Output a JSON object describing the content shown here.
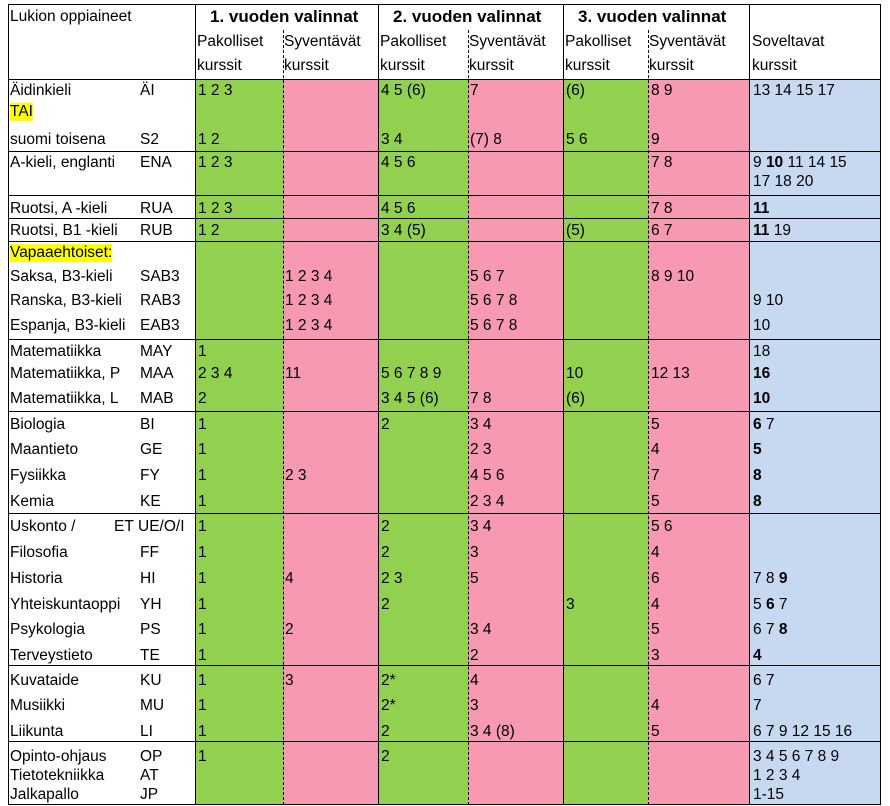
{
  "header": {
    "subjects": "Lukion oppiaineet",
    "year1": "1. vuoden valinnat",
    "year2": "2. vuoden valinnat",
    "year3": "3. vuoden valinnat",
    "pakolliset": "Pakolliset",
    "syventavat": "Syventävät",
    "soveltavat": "Soveltavat",
    "kurssit": "kurssit"
  },
  "rows": [
    {
      "name": "Äidinkieli",
      "code": "ÄI",
      "y1p": "1 2 3",
      "y2p": "4 5 (6)",
      "y2s": "7",
      "y3p": "(6)",
      "y3s": "8 9",
      "sov": "13 14 15 17"
    },
    {
      "name": "TAI",
      "highlight": true
    },
    {
      "name": "suomi toisena",
      "code": "S2",
      "y1p": "1 2",
      "y2p": "3 4",
      "y2s": "(7) 8",
      "y3p": "5 6",
      "y3s": "9"
    },
    {
      "name": "A-kieli, englanti",
      "code": "ENA",
      "y1p": "1 2 3",
      "y2p": "4 5 6",
      "y3s": "7 8",
      "sov_a": "9 ",
      "sov_b": "10",
      "sov_c": " 11 14 15",
      "sov2": "17 18 20"
    },
    {
      "name": "Ruotsi, A -kieli",
      "code": "RUA",
      "y1p": "1 2 3",
      "y2p": "4 5 6",
      "y3s": "7 8",
      "sov_b": "11"
    },
    {
      "name": "Ruotsi, B1 -kieli",
      "code": "RUB",
      "y1p": "1 2",
      "y2p": "3 4 (5)",
      "y3p": "(5)",
      "y3s": "6 7",
      "sov_b": "11",
      "sov_c": " 19"
    },
    {
      "name": "Vapaaehtoiset:",
      "highlight": true
    },
    {
      "name": "Saksa, B3-kieli",
      "code": "SAB3",
      "y1s": "1 2 3 4",
      "y2s": "5 6 7",
      "y3s": "8  9 10"
    },
    {
      "name": "Ranska, B3-kieli",
      "code": "RAB3",
      "y1s": "1 2 3 4",
      "y2s": "5 6 7 8",
      "sov": "9 10"
    },
    {
      "name": "Espanja, B3-kieli",
      "code": "EAB3",
      "y1s": "1 2 3 4",
      "y2s": "5 6 7 8",
      "sov": "10"
    },
    {
      "name": "Matematiikka",
      "code": "MAY",
      "y1p": "1",
      "sov": "18"
    },
    {
      "name": "Matematiikka, P",
      "code": "MAA",
      "y1p": "2 3 4",
      "y1s": "11",
      "y2p": "5 6 7 8 9",
      "y3p": "10",
      "y3s": "12 13",
      "sov_b": "16"
    },
    {
      "name": "Matematiikka, L",
      "code": "MAB",
      "y1p": "2",
      "y2p": "3 4 5 (6)",
      "y2s": "7 8",
      "y3p": "(6)",
      "sov_b": "10"
    },
    {
      "name": "Biologia",
      "code": "BI",
      "y1p": "1",
      "y2p": "2",
      "y2s": "3 4",
      "y3s": "5",
      "sov_b": "6",
      "sov_c": " 7"
    },
    {
      "name": "Maantieto",
      "code": "GE",
      "y1p": "1",
      "y2s": "2 3",
      "y3s": "4",
      "sov_b": "5"
    },
    {
      "name": "Fysiikka",
      "code": "FY",
      "y1p": "1",
      "y1s": "2 3",
      "y2s": "4 5 6",
      "y3s": "7",
      "sov_b": "8"
    },
    {
      "name": "Kemia",
      "code": "KE",
      "y1p": "1",
      "y2s": "2 3 4",
      "y3s": "5",
      "sov_b": "8"
    },
    {
      "name": "Uskonto /",
      "code2": "ET",
      "code": "UE/O/I",
      "y1p": "1",
      "y2p": "2",
      "y2s": "3 4",
      "y3s": "5 6"
    },
    {
      "name": "Filosofia",
      "code": "FF",
      "y1p": "1",
      "y2p": "2",
      "y2s": "3",
      "y3s": "4"
    },
    {
      "name": "Historia",
      "code": "HI",
      "y1p": "1",
      "y1s": "4",
      "y2p": "2 3",
      "y2s": "5",
      "y3s": "6",
      "sov_a": "7 8 ",
      "sov_b": "9"
    },
    {
      "name": "Yhteiskuntaoppi",
      "code": "YH",
      "y1p": "1",
      "y2p": "2",
      "y3p": "3",
      "y3s": "4",
      "sov_a": "5 ",
      "sov_b": "6",
      "sov_c": " 7"
    },
    {
      "name": "Psykologia",
      "code": "PS",
      "y1p": "1",
      "y1s": "2",
      "y2s": "3 4",
      "y3s": "5",
      "sov_a": "6 7 ",
      "sov_b": "8"
    },
    {
      "name": "Terveystieto",
      "code": "TE",
      "y1p": "1",
      "y2s": "2",
      "y3s": "3",
      "sov_b": "4"
    },
    {
      "name": "Kuvataide",
      "code": "KU",
      "y1p": "1",
      "y1s": "3",
      "y2p": "2*",
      "y2s": "4",
      "sov": "6 7"
    },
    {
      "name": "Musiikki",
      "code": "MU",
      "y1p": "1",
      "y2p": "2*",
      "y2s": "3",
      "y3s": "4",
      "sov": "7"
    },
    {
      "name": "Liikunta",
      "code": "LI",
      "y1p": "1",
      "y2p": "2",
      "y2s": "3 4 (8)",
      "y3s": "5",
      "sov": "6 7 9 12 15 16"
    },
    {
      "name": "Opinto-ohjaus",
      "code": "OP",
      "y1p": "1",
      "y2p": "2",
      "sov": "3 4 5 6 7 8 9"
    },
    {
      "name": "Tietotekniikka",
      "code": "AT",
      "sov": "1 2 3 4"
    },
    {
      "name": "Jalkapallo",
      "code": "JP",
      "sov": "1-15"
    }
  ]
}
